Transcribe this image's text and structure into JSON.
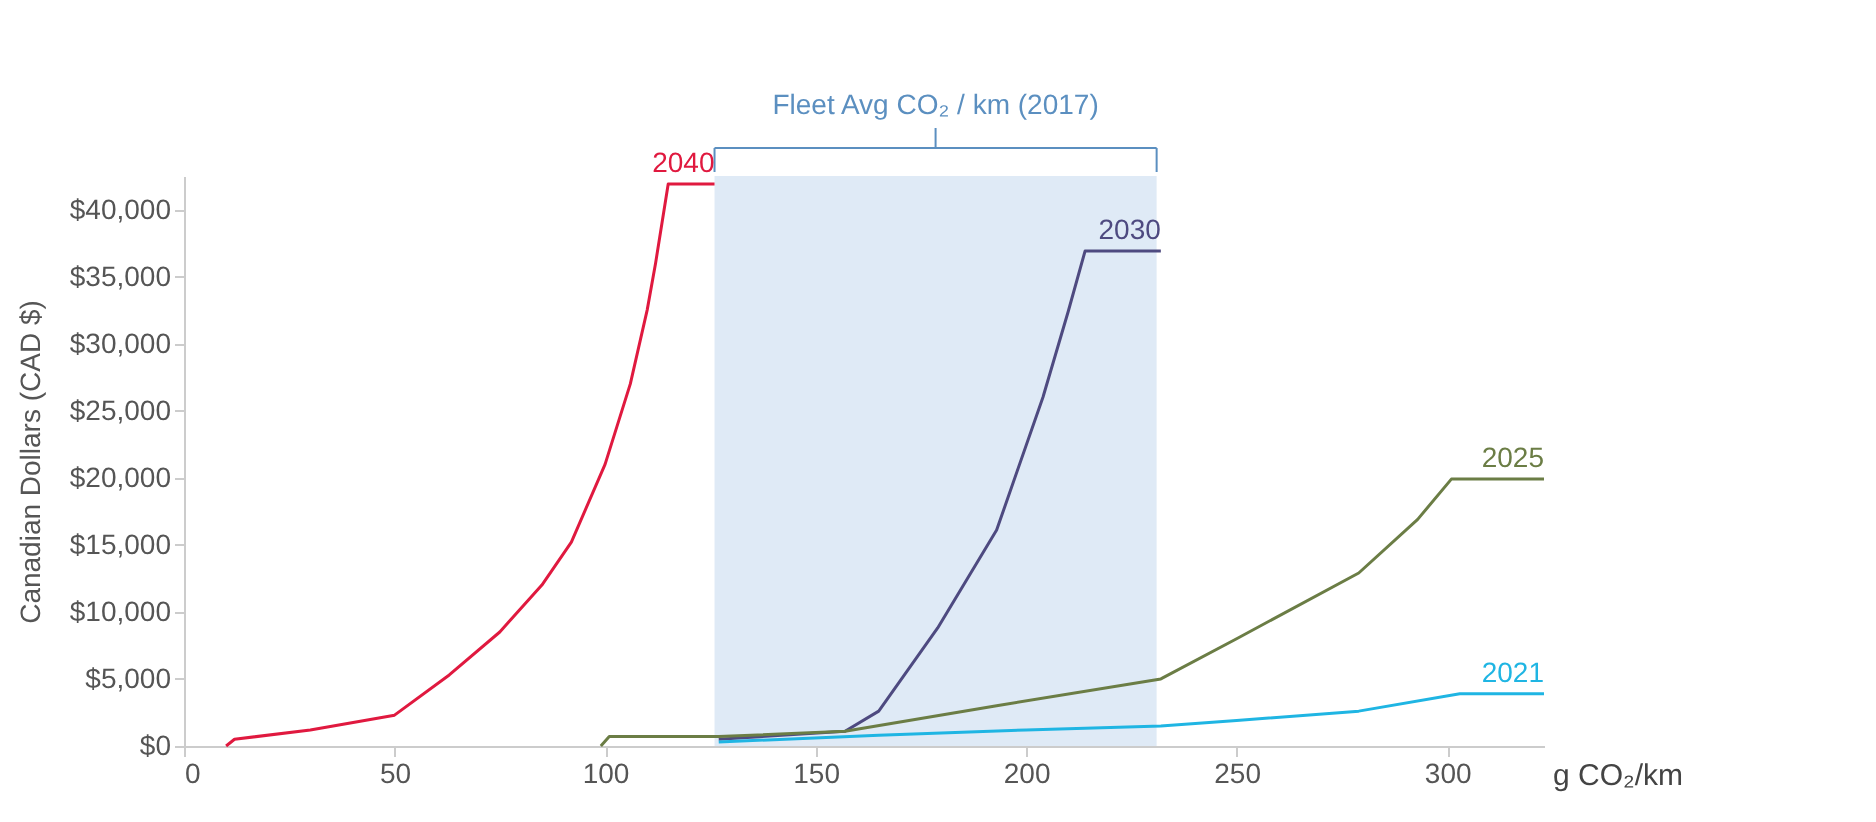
{
  "chart_data": {
    "type": "line",
    "xlabel": "g CO₂/km",
    "ylabel": "Canadian Dollars (CAD $)",
    "xlim": [
      0,
      323
    ],
    "xticks": [
      0,
      50,
      100,
      150,
      200,
      250,
      300
    ],
    "ylim": [
      0,
      42500
    ],
    "yticks": [
      {
        "value": 0,
        "label": "$0"
      },
      {
        "value": 5000,
        "label": "$5,000"
      },
      {
        "value": 10000,
        "label": "$10,000"
      },
      {
        "value": 15000,
        "label": "$15,000"
      },
      {
        "value": 20000,
        "label": "$20,000"
      },
      {
        "value": 25000,
        "label": "$25,000"
      },
      {
        "value": 30000,
        "label": "$30,000"
      },
      {
        "value": 35000,
        "label": "$35,000"
      },
      {
        "value": 40000,
        "label": "$40,000"
      }
    ],
    "grid": false,
    "marker": "none",
    "line_style": "solid",
    "bands": [
      {
        "axis": "x",
        "from": 126,
        "to": 231,
        "label": "Fleet Avg CO₂ / km (2017)",
        "color": "#dce8f5"
      }
    ],
    "series": [
      {
        "name": "2040",
        "color": "#e0193f",
        "x": [
          10,
          12,
          30,
          50,
          63,
          75,
          85,
          92,
          100,
          106,
          110,
          112,
          115,
          126
        ],
        "values": [
          0,
          500,
          1200,
          2300,
          5300,
          8500,
          12000,
          15200,
          21000,
          27000,
          32500,
          36000,
          41900,
          41900
        ]
      },
      {
        "name": "2030",
        "color": "#4e4a80",
        "x": [
          127,
          157,
          165,
          179,
          193,
          204,
          210,
          214,
          232
        ],
        "values": [
          500,
          1100,
          2600,
          8800,
          16100,
          26000,
          32400,
          36900,
          36900
        ]
      },
      {
        "name": "2025",
        "color": "#6b7d45",
        "x": [
          99,
          101,
          127,
          157,
          193,
          232,
          250,
          279,
          293,
          301,
          323
        ],
        "values": [
          0,
          700,
          700,
          1100,
          3000,
          5000,
          8000,
          12900,
          16900,
          19900,
          19900
        ]
      },
      {
        "name": "2021",
        "color": "#1fb5e3",
        "x": [
          127,
          165,
          200,
          232,
          250,
          279,
          303,
          323
        ],
        "values": [
          300,
          800,
          1200,
          1500,
          1900,
          2600,
          3900,
          3900
        ]
      }
    ]
  }
}
